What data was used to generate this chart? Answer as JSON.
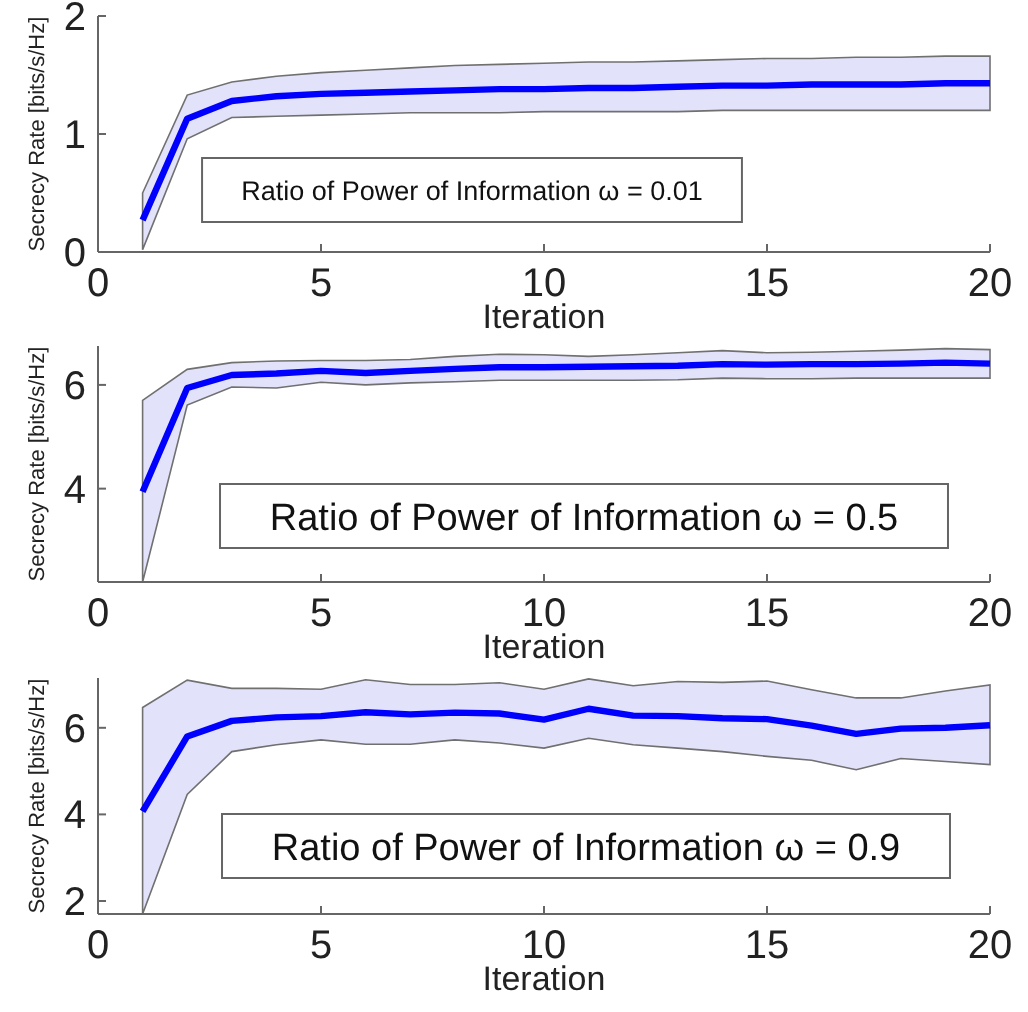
{
  "chart_data": [
    {
      "type": "line",
      "xlabel": "Iteration",
      "ylabel": "Secrecy Rate [bits/s/Hz]",
      "annotations": [
        "Ratio of Power of Information ω = 0.01"
      ],
      "x": [
        1,
        2,
        3,
        4,
        5,
        6,
        7,
        8,
        9,
        10,
        11,
        12,
        13,
        14,
        15,
        16,
        17,
        18,
        19,
        20
      ],
      "xlim": [
        0,
        20
      ],
      "xticks": [
        0,
        5,
        10,
        15,
        20
      ],
      "ylim": [
        0,
        2
      ],
      "yticks": [
        0,
        1,
        2
      ],
      "grid": false,
      "series": [
        {
          "color": "#0000ff",
          "values": [
            0.27,
            1.13,
            1.28,
            1.32,
            1.34,
            1.35,
            1.36,
            1.37,
            1.38,
            1.38,
            1.39,
            1.39,
            1.4,
            1.41,
            1.41,
            1.42,
            1.42,
            1.42,
            1.43,
            1.43
          ],
          "lower": [
            0.02,
            0.96,
            1.14,
            1.15,
            1.16,
            1.17,
            1.18,
            1.18,
            1.18,
            1.19,
            1.19,
            1.19,
            1.19,
            1.2,
            1.2,
            1.2,
            1.2,
            1.2,
            1.2,
            1.2
          ],
          "upper": [
            0.5,
            1.33,
            1.44,
            1.49,
            1.52,
            1.54,
            1.56,
            1.58,
            1.59,
            1.6,
            1.61,
            1.61,
            1.62,
            1.63,
            1.64,
            1.64,
            1.65,
            1.65,
            1.66,
            1.66
          ]
        }
      ]
    },
    {
      "type": "line",
      "xlabel": "Iteration",
      "ylabel": "Secrecy Rate [bits/s/Hz]",
      "annotations": [
        "Ratio of Power of Information ω = 0.5"
      ],
      "x": [
        1,
        2,
        3,
        4,
        5,
        6,
        7,
        8,
        9,
        10,
        11,
        12,
        13,
        14,
        15,
        16,
        17,
        18,
        19,
        20
      ],
      "xlim": [
        0,
        20
      ],
      "xticks": [
        0,
        5,
        10,
        15,
        20
      ],
      "ylim": [
        2.2,
        6.75
      ],
      "yticks": [
        4,
        6
      ],
      "grid": false,
      "series": [
        {
          "color": "#0000ff",
          "values": [
            3.94,
            5.94,
            6.19,
            6.22,
            6.27,
            6.23,
            6.27,
            6.31,
            6.34,
            6.34,
            6.35,
            6.36,
            6.37,
            6.4,
            6.39,
            6.4,
            6.4,
            6.41,
            6.43,
            6.41
          ],
          "lower": [
            2.2,
            5.61,
            5.96,
            5.94,
            6.05,
            6.0,
            6.04,
            6.06,
            6.09,
            6.09,
            6.09,
            6.09,
            6.1,
            6.13,
            6.12,
            6.12,
            6.13,
            6.13,
            6.13,
            6.13
          ],
          "upper": [
            5.7,
            6.3,
            6.43,
            6.46,
            6.47,
            6.47,
            6.49,
            6.55,
            6.59,
            6.58,
            6.55,
            6.58,
            6.62,
            6.66,
            6.62,
            6.63,
            6.65,
            6.67,
            6.7,
            6.68
          ]
        }
      ]
    },
    {
      "type": "line",
      "xlabel": "Iteration",
      "ylabel": "Secrecy Rate [bits/s/Hz]",
      "annotations": [
        "Ratio of Power of Information ω = 0.9"
      ],
      "x": [
        1,
        2,
        3,
        4,
        5,
        6,
        7,
        8,
        9,
        10,
        11,
        12,
        13,
        14,
        15,
        16,
        17,
        18,
        19,
        20
      ],
      "xlim": [
        0,
        20
      ],
      "xticks": [
        0,
        5,
        10,
        15,
        20
      ],
      "ylim": [
        1.7,
        7.15
      ],
      "yticks": [
        2,
        4,
        6
      ],
      "grid": false,
      "series": [
        {
          "color": "#0000ff",
          "values": [
            4.07,
            5.8,
            6.16,
            6.24,
            6.27,
            6.36,
            6.31,
            6.35,
            6.33,
            6.19,
            6.44,
            6.28,
            6.27,
            6.22,
            6.2,
            6.05,
            5.86,
            5.98,
            6.0,
            6.06
          ],
          "lower": [
            1.7,
            4.46,
            5.45,
            5.61,
            5.72,
            5.62,
            5.62,
            5.72,
            5.65,
            5.53,
            5.76,
            5.61,
            5.53,
            5.45,
            5.34,
            5.25,
            5.03,
            5.29,
            5.22,
            5.15
          ],
          "upper": [
            6.47,
            7.1,
            6.91,
            6.91,
            6.89,
            7.11,
            7.0,
            7.0,
            7.04,
            6.89,
            7.13,
            6.97,
            7.07,
            7.05,
            7.08,
            6.88,
            6.69,
            6.69,
            6.85,
            6.99
          ]
        }
      ]
    }
  ]
}
